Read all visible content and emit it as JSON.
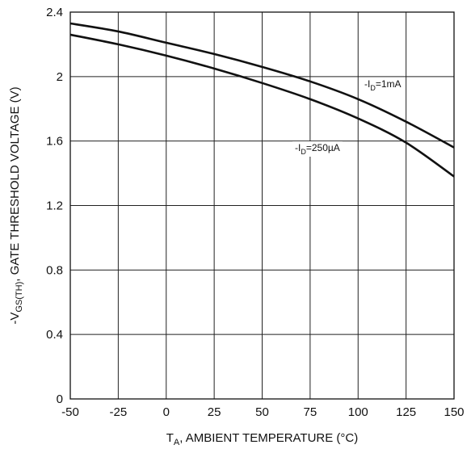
{
  "chart_data": {
    "type": "line",
    "title": "",
    "xlabel": {
      "main": "T",
      "sub": "A",
      "rest": ", AMBIENT TEMPERATURE (°C)"
    },
    "ylabel": {
      "prefix": "-V",
      "sub": "GS(TH)",
      "rest": ", GATE THRESHOLD VOLTAGE (V)"
    },
    "xlim": [
      -50,
      150
    ],
    "ylim": [
      0,
      2.4
    ],
    "xticks": [
      "-50",
      "-25",
      "0",
      "25",
      "50",
      "75",
      "100",
      "125",
      "150"
    ],
    "yticks": [
      "0",
      "0.4",
      "0.8",
      "1.2",
      "1.6",
      "2",
      "2.4"
    ],
    "grid": true,
    "legend": "none",
    "series": [
      {
        "label_prefix": "-I",
        "label_sub": "D",
        "label_rest": "=1mA",
        "x": [
          -50,
          -25,
          0,
          25,
          50,
          75,
          100,
          125,
          150
        ],
        "y": [
          2.33,
          2.28,
          2.21,
          2.14,
          2.06,
          1.97,
          1.86,
          1.72,
          1.56
        ]
      },
      {
        "label_prefix": "-I",
        "label_sub": "D",
        "label_rest": "=250µA",
        "x": [
          -50,
          -25,
          0,
          25,
          50,
          75,
          100,
          125,
          150
        ],
        "y": [
          2.26,
          2.2,
          2.13,
          2.05,
          1.96,
          1.86,
          1.74,
          1.59,
          1.38
        ]
      }
    ]
  }
}
